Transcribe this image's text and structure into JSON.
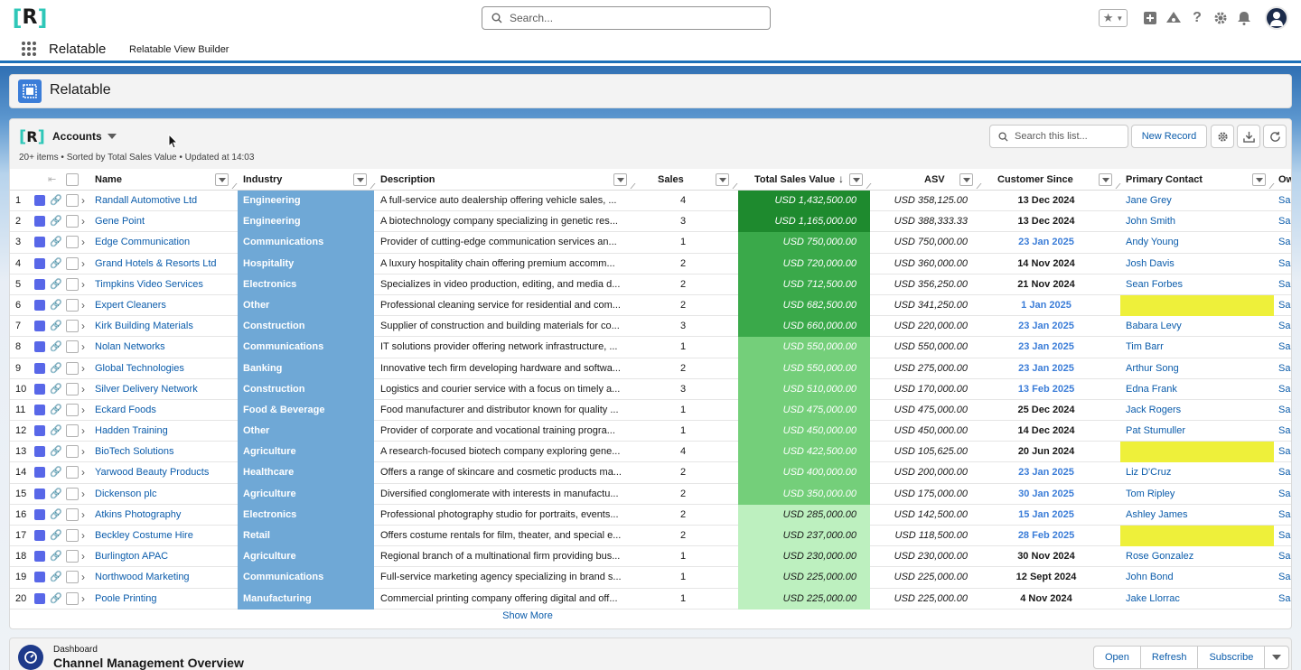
{
  "header": {
    "search_placeholder": "Search...",
    "app_name": "Relatable",
    "nav_item": "Relatable View Builder"
  },
  "page": {
    "title": "Relatable"
  },
  "list": {
    "title": "Accounts",
    "meta": "20+ items • Sorted by Total Sales Value • Updated at 14:03",
    "search_placeholder": "Search this list...",
    "new_record": "New Record",
    "show_more": "Show More"
  },
  "columns": {
    "name": "Name",
    "industry": "Industry",
    "description": "Description",
    "sales": "Sales",
    "tsv": "Total Sales Value",
    "asv": "ASV",
    "since": "Customer Since",
    "contact": "Primary Contact",
    "owner": "Ow"
  },
  "colors": {
    "industry_bg": "#6fa8d6",
    "link": "#0b5cab",
    "contact_missing": "#eef03a",
    "date_recent": "#3b7dd8"
  },
  "rows": [
    {
      "num": "1",
      "name": "Randall Automotive Ltd",
      "industry": "Engineering",
      "desc": "A full-service auto dealership offering vehicle sales, ...",
      "sales": "4",
      "tsv": "USD 1,432,500.00",
      "asv": "USD 358,125.00",
      "since": "13 Dec 2024",
      "since_recent": false,
      "contact": "Jane Grey",
      "owner": "Sal",
      "tsv_color": "#1e8a2e"
    },
    {
      "num": "2",
      "name": "Gene Point",
      "industry": "Engineering",
      "desc": "A biotechnology company specializing in genetic res...",
      "sales": "3",
      "tsv": "USD 1,165,000.00",
      "asv": "USD 388,333.33",
      "since": "13 Dec 2024",
      "since_recent": false,
      "contact": "John Smith",
      "owner": "Sal",
      "tsv_color": "#1e8a2e"
    },
    {
      "num": "3",
      "name": "Edge Communication",
      "industry": "Communications",
      "desc": "Provider of cutting-edge communication services an...",
      "sales": "1",
      "tsv": "USD 750,000.00",
      "asv": "USD 750,000.00",
      "since": "23 Jan 2025",
      "since_recent": true,
      "contact": "Andy Young",
      "owner": "Sal",
      "tsv_color": "#3aa94a"
    },
    {
      "num": "4",
      "name": "Grand Hotels & Resorts Ltd",
      "industry": "Hospitality",
      "desc": "A luxury hospitality chain offering premium accomm...",
      "sales": "2",
      "tsv": "USD 720,000.00",
      "asv": "USD 360,000.00",
      "since": "14 Nov 2024",
      "since_recent": false,
      "contact": "Josh Davis",
      "owner": "Sal",
      "tsv_color": "#3aa94a"
    },
    {
      "num": "5",
      "name": "Timpkins Video Services",
      "industry": "Electronics",
      "desc": "Specializes in video production, editing, and media d...",
      "sales": "2",
      "tsv": "USD 712,500.00",
      "asv": "USD 356,250.00",
      "since": "21 Nov 2024",
      "since_recent": false,
      "contact": "Sean Forbes",
      "owner": "Sal",
      "tsv_color": "#3aa94a"
    },
    {
      "num": "6",
      "name": "Expert Cleaners",
      "industry": "Other",
      "desc": "Professional cleaning service for residential and com...",
      "sales": "2",
      "tsv": "USD 682,500.00",
      "asv": "USD 341,250.00",
      "since": "1 Jan 2025",
      "since_recent": true,
      "contact": "",
      "owner": "Sal",
      "tsv_color": "#3aa94a"
    },
    {
      "num": "7",
      "name": "Kirk Building Materials",
      "industry": "Construction",
      "desc": "Supplier of construction and building materials for co...",
      "sales": "3",
      "tsv": "USD 660,000.00",
      "asv": "USD 220,000.00",
      "since": "23 Jan 2025",
      "since_recent": true,
      "contact": "Babara Levy",
      "owner": "Sal",
      "tsv_color": "#3aa94a"
    },
    {
      "num": "8",
      "name": "Nolan Networks",
      "industry": "Communications",
      "desc": "IT solutions provider offering network infrastructure, ...",
      "sales": "1",
      "tsv": "USD 550,000.00",
      "asv": "USD 550,000.00",
      "since": "23 Jan 2025",
      "since_recent": true,
      "contact": "Tim Barr",
      "owner": "Sal",
      "tsv_color": "#74cf7a"
    },
    {
      "num": "9",
      "name": "Global Technologies",
      "industry": "Banking",
      "desc": "Innovative tech firm developing hardware and softwa...",
      "sales": "2",
      "tsv": "USD 550,000.00",
      "asv": "USD 275,000.00",
      "since": "23 Jan 2025",
      "since_recent": true,
      "contact": "Arthur Song",
      "owner": "Sal",
      "tsv_color": "#74cf7a"
    },
    {
      "num": "10",
      "name": "Silver Delivery Network",
      "industry": "Construction",
      "desc": "Logistics and courier service with a focus on timely a...",
      "sales": "3",
      "tsv": "USD 510,000.00",
      "asv": "USD 170,000.00",
      "since": "13 Feb 2025",
      "since_recent": true,
      "contact": "Edna Frank",
      "owner": "Sal",
      "tsv_color": "#74cf7a"
    },
    {
      "num": "11",
      "name": "Eckard Foods",
      "industry": "Food & Beverage",
      "desc": "Food manufacturer and distributor known for quality ...",
      "sales": "1",
      "tsv": "USD 475,000.00",
      "asv": "USD 475,000.00",
      "since": "25 Dec 2024",
      "since_recent": false,
      "contact": "Jack Rogers",
      "owner": "Sal",
      "tsv_color": "#74cf7a"
    },
    {
      "num": "12",
      "name": "Hadden Training",
      "industry": "Other",
      "desc": "Provider of corporate and vocational training progra...",
      "sales": "1",
      "tsv": "USD 450,000.00",
      "asv": "USD 450,000.00",
      "since": "14 Dec 2024",
      "since_recent": false,
      "contact": "Pat Stumuller",
      "owner": "Sal",
      "tsv_color": "#74cf7a"
    },
    {
      "num": "13",
      "name": "BioTech Solutions",
      "industry": "Agriculture",
      "desc": "A research-focused biotech company exploring gene...",
      "sales": "4",
      "tsv": "USD 422,500.00",
      "asv": "USD 105,625.00",
      "since": "20 Jun 2024",
      "since_recent": false,
      "contact": "",
      "owner": "Sal",
      "tsv_color": "#74cf7a"
    },
    {
      "num": "14",
      "name": "Yarwood Beauty Products",
      "industry": "Healthcare",
      "desc": "Offers a range of skincare and cosmetic products ma...",
      "sales": "2",
      "tsv": "USD 400,000.00",
      "asv": "USD 200,000.00",
      "since": "23 Jan 2025",
      "since_recent": true,
      "contact": "Liz D'Cruz",
      "owner": "Sal",
      "tsv_color": "#74cf7a"
    },
    {
      "num": "15",
      "name": "Dickenson plc",
      "industry": "Agriculture",
      "desc": "Diversified conglomerate with interests in manufactu...",
      "sales": "2",
      "tsv": "USD 350,000.00",
      "asv": "USD 175,000.00",
      "since": "30 Jan 2025",
      "since_recent": true,
      "contact": "Tom Ripley",
      "owner": "Sal",
      "tsv_color": "#74cf7a"
    },
    {
      "num": "16",
      "name": "Atkins Photography",
      "industry": "Electronics",
      "desc": "Professional photography studio for portraits, events...",
      "sales": "2",
      "tsv": "USD 285,000.00",
      "asv": "USD 142,500.00",
      "since": "15 Jan 2025",
      "since_recent": true,
      "contact": "Ashley James",
      "owner": "Sal",
      "tsv_color": "#bdf0bf"
    },
    {
      "num": "17",
      "name": "Beckley Costume Hire",
      "industry": "Retail",
      "desc": "Offers costume rentals for film, theater, and special e...",
      "sales": "2",
      "tsv": "USD 237,000.00",
      "asv": "USD 118,500.00",
      "since": "28 Feb 2025",
      "since_recent": true,
      "contact": "",
      "owner": "Sal",
      "tsv_color": "#bdf0bf"
    },
    {
      "num": "18",
      "name": "Burlington APAC",
      "industry": "Agriculture",
      "desc": "Regional branch of a multinational firm providing bus...",
      "sales": "1",
      "tsv": "USD 230,000.00",
      "asv": "USD 230,000.00",
      "since": "30 Nov 2024",
      "since_recent": false,
      "contact": "Rose Gonzalez",
      "owner": "Sal",
      "tsv_color": "#bdf0bf"
    },
    {
      "num": "19",
      "name": "Northwood Marketing",
      "industry": "Communications",
      "desc": "Full-service marketing agency specializing in brand s...",
      "sales": "1",
      "tsv": "USD 225,000.00",
      "asv": "USD 225,000.00",
      "since": "12 Sept 2024",
      "since_recent": false,
      "contact": "John Bond",
      "owner": "Sal",
      "tsv_color": "#bdf0bf"
    },
    {
      "num": "20",
      "name": "Poole Printing",
      "industry": "Manufacturing",
      "desc": "Commercial printing company offering digital and off...",
      "sales": "1",
      "tsv": "USD 225,000.00",
      "asv": "USD 225,000.00",
      "since": "4 Nov 2024",
      "since_recent": false,
      "contact": "Jake Llorrac",
      "owner": "Sal",
      "tsv_color": "#bdf0bf"
    }
  ],
  "dashboard": {
    "label": "Dashboard",
    "title": "Channel Management Overview",
    "open": "Open",
    "refresh": "Refresh",
    "subscribe": "Subscribe"
  }
}
